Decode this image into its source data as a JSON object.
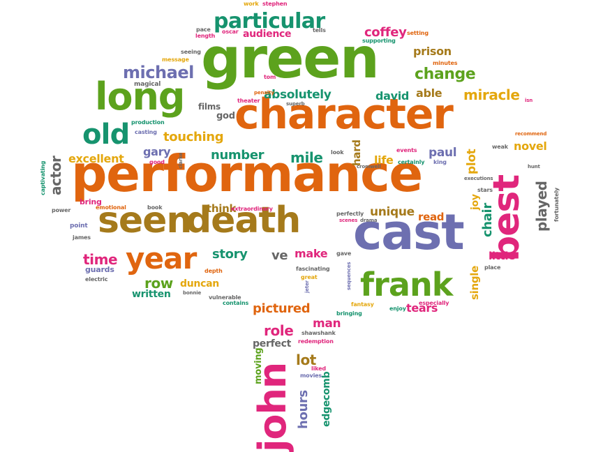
{
  "colors": {
    "orange": "#e0650f",
    "green": "#5ca21d",
    "brown": "#a57a1b",
    "purple": "#6d6fb0",
    "pink": "#e0267c",
    "teal": "#16936e",
    "gold": "#e4a70d",
    "gray": "#666666"
  },
  "words": [
    {
      "text": "performance",
      "color": "#e0650f"
    },
    {
      "text": "green",
      "color": "#5ca21d"
    },
    {
      "text": "character",
      "color": "#e0650f"
    },
    {
      "text": "seen",
      "color": "#a57a1b"
    },
    {
      "text": "death",
      "color": "#a57a1b"
    },
    {
      "text": "cast",
      "color": "#6d6fb0"
    },
    {
      "text": "long",
      "color": "#5ca21d"
    },
    {
      "text": "best",
      "color": "#e0267c"
    },
    {
      "text": "john",
      "color": "#e0267c"
    },
    {
      "text": "frank",
      "color": "#5ca21d"
    },
    {
      "text": "year",
      "color": "#e0650f"
    },
    {
      "text": "old",
      "color": "#16936e"
    },
    {
      "text": "particular",
      "color": "#16936e"
    },
    {
      "text": "michael",
      "color": "#6d6fb0"
    },
    {
      "text": "change",
      "color": "#5ca21d"
    },
    {
      "text": "coffey",
      "color": "#e0267c"
    },
    {
      "text": "prison",
      "color": "#a57a1b"
    },
    {
      "text": "miracle",
      "color": "#e4a70d"
    },
    {
      "text": "absolutely",
      "color": "#16936e"
    },
    {
      "text": "david",
      "color": "#16936e"
    },
    {
      "text": "able",
      "color": "#a57a1b"
    },
    {
      "text": "touching",
      "color": "#e4a70d"
    },
    {
      "text": "number",
      "color": "#16936e"
    },
    {
      "text": "mile",
      "color": "#16936e"
    },
    {
      "text": "excellent",
      "color": "#e4a70d"
    },
    {
      "text": "actor",
      "color": "#666666"
    },
    {
      "text": "gary",
      "color": "#6d6fb0"
    },
    {
      "text": "life",
      "color": "#e4a70d"
    },
    {
      "text": "paul",
      "color": "#6d6fb0"
    },
    {
      "text": "plot",
      "color": "#e4a70d"
    },
    {
      "text": "novel",
      "color": "#e4a70d"
    },
    {
      "text": "played",
      "color": "#666666"
    },
    {
      "text": "chair",
      "color": "#16936e"
    },
    {
      "text": "joy",
      "color": "#e4a70d"
    },
    {
      "text": "unique",
      "color": "#a57a1b"
    },
    {
      "text": "read",
      "color": "#e0650f"
    },
    {
      "text": "think",
      "color": "#a57a1b"
    },
    {
      "text": "story",
      "color": "#16936e"
    },
    {
      "text": "ve",
      "color": "#666666"
    },
    {
      "text": "make",
      "color": "#e0267c"
    },
    {
      "text": "time",
      "color": "#e0267c"
    },
    {
      "text": "row",
      "color": "#5ca21d"
    },
    {
      "text": "duncan",
      "color": "#e4a70d"
    },
    {
      "text": "written",
      "color": "#16936e"
    },
    {
      "text": "pictured",
      "color": "#e0650f"
    },
    {
      "text": "role",
      "color": "#e0267c"
    },
    {
      "text": "man",
      "color": "#e0267c"
    },
    {
      "text": "perfect",
      "color": "#666666"
    },
    {
      "text": "lot",
      "color": "#a57a1b"
    },
    {
      "text": "hours",
      "color": "#6d6fb0"
    },
    {
      "text": "edgecomb",
      "color": "#16936e"
    },
    {
      "text": "moving",
      "color": "#5ca21d"
    },
    {
      "text": "tears",
      "color": "#e0267c"
    },
    {
      "text": "single",
      "color": "#e4a70d"
    },
    {
      "text": "little",
      "color": "#e0267c"
    },
    {
      "text": "hard",
      "color": "#a57a1b"
    },
    {
      "text": "god",
      "color": "#666666"
    },
    {
      "text": "films",
      "color": "#666666"
    },
    {
      "text": "audience",
      "color": "#e0267c"
    },
    {
      "text": "bring",
      "color": "#e0267c"
    },
    {
      "text": "guards",
      "color": "#6d6fb0"
    },
    {
      "text": "magical",
      "color": "#666666"
    },
    {
      "text": "work",
      "color": "#e4a70d"
    },
    {
      "text": "stephen",
      "color": "#e0267c"
    },
    {
      "text": "pace",
      "color": "#666666"
    },
    {
      "text": "length",
      "color": "#e0267c"
    },
    {
      "text": "oscar",
      "color": "#e0267c"
    },
    {
      "text": "tells",
      "color": "#666666"
    },
    {
      "text": "setting",
      "color": "#e0650f"
    },
    {
      "text": "supporting",
      "color": "#16936e"
    },
    {
      "text": "seeing",
      "color": "#666666"
    },
    {
      "text": "message",
      "color": "#e4a70d"
    },
    {
      "text": "minutes",
      "color": "#e0650f"
    },
    {
      "text": "tom",
      "color": "#e0267c"
    },
    {
      "text": "penalty",
      "color": "#e0650f"
    },
    {
      "text": "theater",
      "color": "#e0267c"
    },
    {
      "text": "superb",
      "color": "#666666"
    },
    {
      "text": "production",
      "color": "#16936e"
    },
    {
      "text": "casting",
      "color": "#6d6fb0"
    },
    {
      "text": "good",
      "color": "#e0267c"
    },
    {
      "text": "clarke",
      "color": "#666666"
    },
    {
      "text": "look",
      "color": "#666666"
    },
    {
      "text": "events",
      "color": "#e0267c"
    },
    {
      "text": "certainly",
      "color": "#16936e"
    },
    {
      "text": "king",
      "color": "#6d6fb0"
    },
    {
      "text": "cromwell",
      "color": "#666666"
    },
    {
      "text": "weak",
      "color": "#666666"
    },
    {
      "text": "recommend",
      "color": "#e0650f"
    },
    {
      "text": "isn",
      "color": "#e0267c"
    },
    {
      "text": "hunt",
      "color": "#666666"
    },
    {
      "text": "executions",
      "color": "#666666"
    },
    {
      "text": "stars",
      "color": "#666666"
    },
    {
      "text": "fortunately",
      "color": "#666666"
    },
    {
      "text": "captivating",
      "color": "#16936e"
    },
    {
      "text": "power",
      "color": "#666666"
    },
    {
      "text": "emotional",
      "color": "#e0650f"
    },
    {
      "text": "book",
      "color": "#666666"
    },
    {
      "text": "extraordinary",
      "color": "#e0267c"
    },
    {
      "text": "perfectly",
      "color": "#666666"
    },
    {
      "text": "scenes",
      "color": "#e0267c"
    },
    {
      "text": "drama",
      "color": "#666666"
    },
    {
      "text": "point",
      "color": "#6d6fb0"
    },
    {
      "text": "james",
      "color": "#666666"
    },
    {
      "text": "electric",
      "color": "#666666"
    },
    {
      "text": "depth",
      "color": "#e0650f"
    },
    {
      "text": "fascinating",
      "color": "#666666"
    },
    {
      "text": "great",
      "color": "#e4a70d"
    },
    {
      "text": "gave",
      "color": "#666666"
    },
    {
      "text": "sequences",
      "color": "#6d6fb0"
    },
    {
      "text": "place",
      "color": "#666666"
    },
    {
      "text": "especially",
      "color": "#e0267c"
    },
    {
      "text": "bonnie",
      "color": "#666666"
    },
    {
      "text": "vulnerable",
      "color": "#666666"
    },
    {
      "text": "contains",
      "color": "#16936e"
    },
    {
      "text": "jeter",
      "color": "#6d6fb0"
    },
    {
      "text": "fantasy",
      "color": "#e4a70d"
    },
    {
      "text": "bringing",
      "color": "#16936e"
    },
    {
      "text": "enjoy",
      "color": "#16936e"
    },
    {
      "text": "shawshank",
      "color": "#666666"
    },
    {
      "text": "redemption",
      "color": "#e0267c"
    },
    {
      "text": "liked",
      "color": "#e0267c"
    },
    {
      "text": "movies",
      "color": "#6d6fb0"
    }
  ]
}
